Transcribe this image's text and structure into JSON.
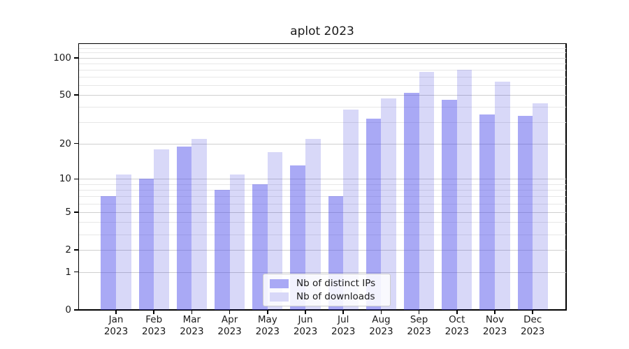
{
  "chart_data": {
    "type": "bar",
    "title": "aplot 2023",
    "categories": [
      "Jan",
      "Feb",
      "Mar",
      "Apr",
      "May",
      "Jun",
      "Jul",
      "Aug",
      "Sep",
      "Oct",
      "Nov",
      "Dec"
    ],
    "category_year": "2023",
    "series": [
      {
        "name": "Nb of distinct IPs",
        "color": "#a9a9f5",
        "fill": "rgba(64,64,233,0.45)",
        "values": [
          7,
          10,
          19,
          8,
          9,
          13,
          7,
          32,
          52,
          46,
          35,
          34
        ]
      },
      {
        "name": "Nb of downloads",
        "color": "#d8d8f8",
        "fill": "rgba(38,38,216,0.18)",
        "values": [
          11,
          18,
          22,
          11,
          17,
          22,
          38,
          47,
          77,
          80,
          64,
          43
        ]
      }
    ],
    "y_scale": "log1p",
    "y_axis": {
      "major_ticks": [
        0,
        1,
        2,
        5,
        10,
        20,
        50,
        100
      ],
      "major_tick_labels": [
        "0",
        "1",
        "2",
        "5",
        "10",
        "20",
        "50",
        "100"
      ],
      "minor_ticks": [
        3,
        4,
        6,
        7,
        8,
        9,
        30,
        40,
        60,
        70,
        80,
        90,
        110,
        120
      ],
      "top_value": 129
    },
    "grid": true,
    "legend_position": "lower center",
    "xlabel": "",
    "ylabel": ""
  },
  "colors": {
    "grid_major": "#cfcfcf",
    "grid_minor": "#e7e7e7",
    "spine": "#000000",
    "legend_border": "#cccccc"
  }
}
